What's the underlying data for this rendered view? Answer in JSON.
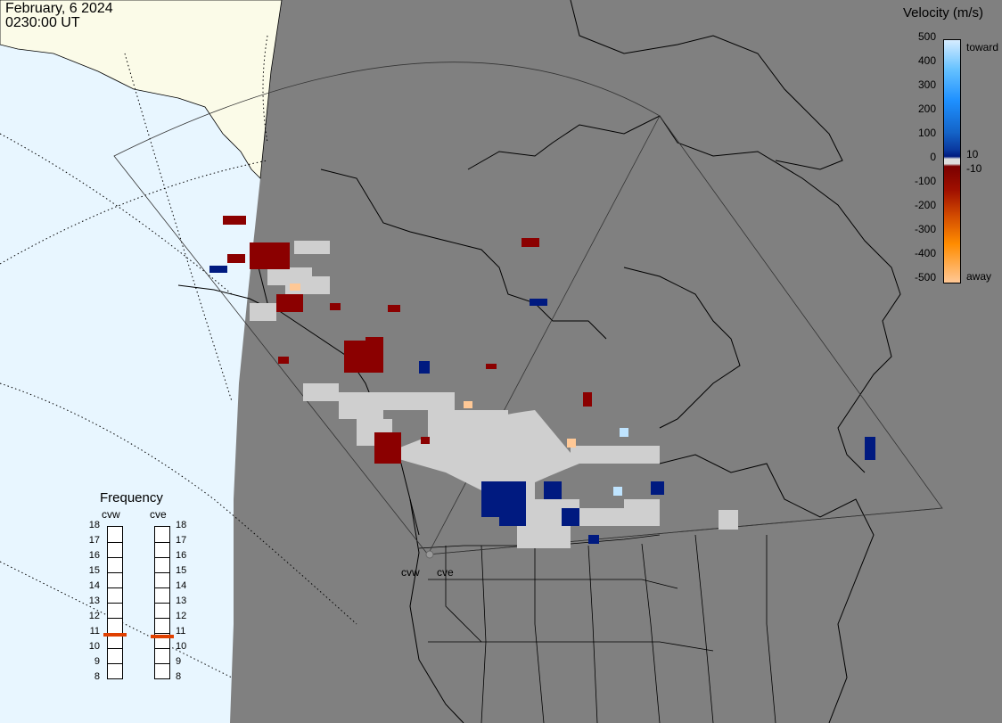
{
  "header": {
    "date": "February, 6 2024",
    "time": "0230:00 UT"
  },
  "velocity_legend": {
    "title": "Velocity (m/s)",
    "ticks": [
      "500",
      "400",
      "300",
      "200",
      "100",
      "0",
      "-100",
      "-200",
      "-300",
      "-400",
      "-500"
    ],
    "inner_ticks": [
      "10",
      "-10"
    ],
    "toward_label": "toward",
    "away_label": "away",
    "colors": [
      "#d6ecff",
      "#66c2ff",
      "#1e90ff",
      "#1464c8",
      "#0a3aa0",
      "#001a80",
      "#7a0000",
      "#a01000",
      "#d04800",
      "#ff8c00",
      "#ffc896"
    ]
  },
  "frequency_panel": {
    "title": "Frequency",
    "radars": [
      {
        "label": "cvw",
        "value_mhz": 10.8
      },
      {
        "label": "cve",
        "value_mhz": 10.7
      }
    ],
    "scale": [
      "18",
      "17",
      "16",
      "15",
      "14",
      "13",
      "12",
      "11",
      "10",
      "9",
      "8"
    ],
    "marker_color": "#e04000"
  },
  "map": {
    "station_labels": [
      "cvw",
      "cve"
    ],
    "land_color": "#808080",
    "ocean_color": "#e8f6ff",
    "ice_color": "#fbfbe8",
    "ground_scatter_color": "#cfcfcf"
  }
}
